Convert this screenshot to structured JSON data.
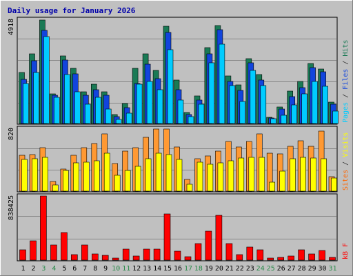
{
  "chart_data": {
    "type": "bar",
    "title": "Daily usage for January 2026",
    "days": [
      "1",
      "2",
      "3",
      "4",
      "5",
      "6",
      "7",
      "8",
      "9",
      "10",
      "11",
      "12",
      "13",
      "14",
      "15",
      "16",
      "17",
      "18",
      "19",
      "20",
      "21",
      "22",
      "23",
      "24",
      "25",
      "26",
      "27",
      "28",
      "29",
      "30",
      "31"
    ],
    "weekend_days": [
      "3",
      "4",
      "10",
      "11",
      "17",
      "18",
      "24",
      "25",
      "31"
    ],
    "weekend_color": "#2a8a4a",
    "panels": [
      {
        "name": "hits-files-pages",
        "axis_max_label": "4918",
        "ylim": [
          0,
          4918
        ],
        "grid": true,
        "legend": [
          {
            "text": "Pages",
            "color": "#00ccff"
          },
          {
            "text": " / ",
            "color": "#333333"
          },
          {
            "text": "Files",
            "color": "#1144dd"
          },
          {
            "text": " / ",
            "color": "#333333"
          },
          {
            "text": "Hits",
            "color": "#1a7a55"
          }
        ],
        "series": [
          {
            "name": "Hits",
            "color": "#1a7a55",
            "values": [
              2400,
              3300,
              4900,
              1400,
              3180,
              2610,
              1500,
              1850,
              1500,
              420,
              950,
              2600,
              3280,
              2500,
              4600,
              2040,
              520,
              1290,
              3570,
              4630,
              2250,
              1830,
              3060,
              2300,
              300,
              770,
              1520,
              1980,
              2820,
              2580,
              1010
            ]
          },
          {
            "name": "Files",
            "color": "#1144dd",
            "values": [
              2100,
              2950,
              4400,
              1350,
              3000,
              2350,
              1350,
              1600,
              1320,
              320,
              750,
              1900,
              2800,
              2130,
              4300,
              1600,
              420,
              1100,
              3300,
              4420,
              2000,
              1550,
              2850,
              2060,
              270,
              700,
              1280,
              1700,
              2640,
              2450,
              900
            ]
          },
          {
            "name": "Pages",
            "color": "#00ccff",
            "values": [
              1900,
              2400,
              4100,
              1250,
              2300,
              1500,
              900,
              1250,
              700,
              200,
              480,
              1850,
              2000,
              1600,
              3500,
              1100,
              320,
              900,
              2850,
              3750,
              1780,
              1050,
              2500,
              1800,
              230,
              400,
              880,
              1400,
              2000,
              1750,
              600
            ]
          }
        ]
      },
      {
        "name": "visits-sites",
        "axis_max_label": "820",
        "ylim": [
          0,
          820
        ],
        "grid": true,
        "legend": [
          {
            "text": "Sites",
            "color": "#ff6600"
          },
          {
            "text": " / ",
            "color": "#333333"
          },
          {
            "text": "Visits",
            "color": "#ffff00"
          }
        ],
        "series": [
          {
            "name": "Visits",
            "color": "#ff9933",
            "values": [
              470,
              480,
              570,
              130,
              290,
              470,
              570,
              620,
              750,
              360,
              520,
              570,
              700,
              810,
              810,
              580,
              150,
              420,
              460,
              520,
              650,
              580,
              650,
              750,
              500,
              490,
              590,
              660,
              590,
              780,
              190
            ]
          },
          {
            "name": "Sites",
            "color": "#ffff00",
            "values": [
              410,
              420,
              440,
              80,
              270,
              370,
              380,
              400,
              500,
              210,
              270,
              320,
              420,
              500,
              480,
              410,
              90,
              380,
              350,
              370,
              400,
              430,
              440,
              440,
              120,
              260,
              420,
              440,
              430,
              420,
              170
            ]
          }
        ]
      },
      {
        "name": "kbytes",
        "axis_max_label": "838425",
        "ylim": [
          0,
          838425
        ],
        "grid": true,
        "legend": [
          {
            "text": "kB F",
            "color": "#ff0000"
          }
        ],
        "series": [
          {
            "name": "kB F",
            "color": "#ff0000",
            "values": [
              138000,
              255000,
              838425,
              196000,
              363000,
              76000,
              199000,
              81000,
              59000,
              30000,
              143000,
              52000,
              140000,
              142000,
              603000,
              120000,
              42000,
              213000,
              378000,
              589000,
              220000,
              75000,
              167000,
              134000,
              24000,
              38000,
              57000,
              131000,
              80000,
              125000,
              34000
            ]
          }
        ]
      }
    ]
  }
}
